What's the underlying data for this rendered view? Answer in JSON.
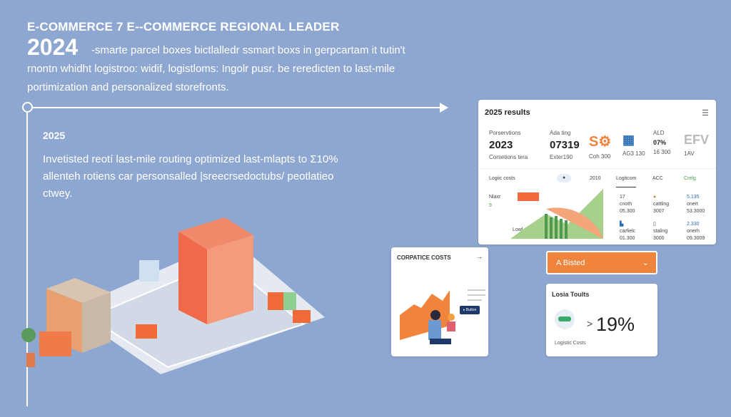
{
  "header": {
    "title": "E-COMMERCE 7 E--COMMERCE REGIONAL LEADER",
    "year": "2024",
    "line1": "-smarte parcel boxes bictlalledr ssmart boxs in gerpcartam it tutin't",
    "line2": "rnontn whidht logistroo: widif, logistloms: Ingolr pusr. be reredicten to last-mile",
    "line3": "portimization and personalized storefronts."
  },
  "section2025": {
    "year": "2025",
    "body": "Invetisted reotí last-mile routing optimized last-mlapts to Σ10% allenteh rotiens car personsalled |sreecrsedoctubs/ peotlatieo ctwey."
  },
  "dashboard": {
    "title": "2025 results",
    "menu_icon": "menu-icon",
    "stats": [
      {
        "label": "Porservtions",
        "value": "2023",
        "sub": "Corsetions tera"
      },
      {
        "label": "Ada ting",
        "value": "07319",
        "sub": "Exter190"
      },
      {
        "label": "",
        "value": "",
        "sub": "Coh 300"
      },
      {
        "label": "",
        "value": "",
        "sub": "AG3 130"
      },
      {
        "label": "ALD",
        "value": "07%",
        "sub": "16 300"
      },
      {
        "label": "",
        "value": "EFV",
        "sub": "1AV"
      }
    ],
    "tabs": [
      "Logiic costs",
      "2010",
      "Logitcom",
      "ACC",
      "Crelg"
    ],
    "legend": [
      "Nlaxr",
      "9",
      "Lowl"
    ],
    "grid": [
      [
        "17",
        "cnoth",
        "05.300"
      ],
      [
        "",
        "cattling",
        "3007"
      ],
      [
        "5.135",
        "onert",
        "53.3000"
      ],
      [
        "",
        "carfielc",
        "01.300"
      ],
      [
        "",
        "staling",
        "3000"
      ],
      [
        "2.330",
        "onerh",
        "09.3009"
      ]
    ]
  },
  "costs": {
    "title": "CORPATICE COSTS",
    "arrow": "→",
    "button": "▸ Button"
  },
  "dropdown": {
    "value": "A Bisted",
    "chevron": "⌄"
  },
  "logis": {
    "title": "Losia Toults",
    "compare": ">",
    "value": "19%",
    "caption": "Logistic Costs"
  },
  "colors": {
    "background": "#8ea7d1",
    "accent": "#f0843c",
    "green": "#4f9a4f"
  }
}
